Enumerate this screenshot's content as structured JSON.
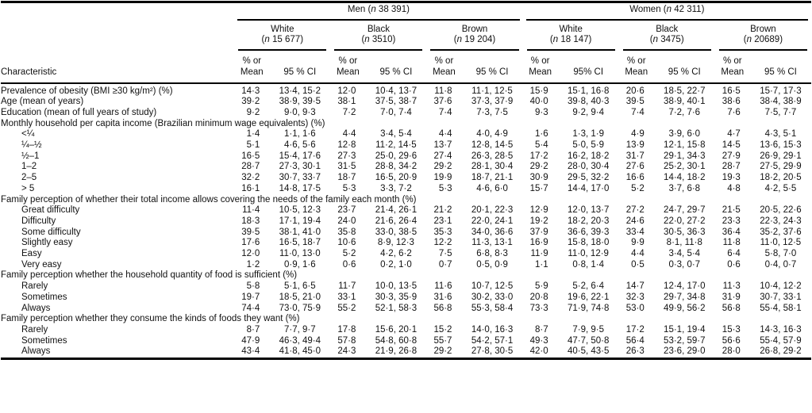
{
  "table": {
    "col_characteristic": "Characteristic",
    "groups": [
      {
        "sex": "Men",
        "nvar": "n",
        "count": "38 391",
        "races": [
          {
            "label": "White",
            "nvar": "n",
            "count": "15 677",
            "mean_header": "% or\nMean",
            "ci_header": "95 % CI"
          },
          {
            "label": "Black",
            "nvar": "n",
            "count": "3510",
            "mean_header": "% or\nMean",
            "ci_header": "95 % CI"
          },
          {
            "label": "Brown",
            "nvar": "n",
            "count": "19 204",
            "mean_header": "% or\nMean",
            "ci_header": "95 % CI"
          }
        ]
      },
      {
        "sex": "Women",
        "nvar": "n",
        "count": "42 311",
        "races": [
          {
            "label": "White",
            "nvar": "n",
            "count": "18 147",
            "mean_header": "% or\nMean",
            "ci_header": "95% CI"
          },
          {
            "label": "Black",
            "nvar": "n",
            "count": "3475",
            "mean_header": "% or\nMean",
            "ci_header": "95 % CI"
          },
          {
            "label": "Brown",
            "nvar": "n",
            "count": "20689",
            "mean_header": "% or\nMean",
            "ci_header": "95 % CI"
          }
        ]
      }
    ],
    "rows": [
      {
        "type": "data",
        "indent": 0,
        "label": "Prevalence of obesity (BMI ≥30 kg/m²) (%)",
        "values": [
          "14·3",
          "13·4, 15·2",
          "12·0",
          "10·4, 13·7",
          "11·8",
          "11·1, 12·5",
          "15·9",
          "15·1, 16·8",
          "20·6",
          "18·5, 22·7",
          "16·5",
          "15·7, 17·3"
        ]
      },
      {
        "type": "data",
        "indent": 0,
        "label": "Age (mean of years)",
        "values": [
          "39·2",
          "38·9, 39·5",
          "38·1",
          "37·5, 38·7",
          "37·6",
          "37·3, 37·9",
          "40·0",
          "39·8, 40·3",
          "39·5",
          "38·9, 40·1",
          "38·6",
          "38·4, 38·9"
        ]
      },
      {
        "type": "data",
        "indent": 0,
        "label": "Education (mean of full years of study)",
        "values": [
          "9·2",
          "9·0, 9·3",
          "7·2",
          "7·0, 7·4",
          "7·4",
          "7·3, 7·5",
          "9·3",
          "9·2, 9·4",
          "7·4",
          "7·2, 7·6",
          "7·6",
          "7·5, 7·7"
        ]
      },
      {
        "type": "section",
        "label": "Monthly household per capita income (Brazilian minimum wage equivalents) (%)"
      },
      {
        "type": "data",
        "indent": 1,
        "label": "<¼",
        "values": [
          "1·4",
          "1·1, 1·6",
          "4·4",
          "3·4, 5·4",
          "4·4",
          "4·0, 4·9",
          "1·6",
          "1·3, 1·9",
          "4·9",
          "3·9, 6·0",
          "4·7",
          "4·3, 5·1"
        ]
      },
      {
        "type": "data",
        "indent": 1,
        "label": "¼–½",
        "values": [
          "5·1",
          "4·6, 5·6",
          "12·8",
          "11·2, 14·5",
          "13·7",
          "12·8, 14·5",
          "5·4",
          "5·0, 5·9",
          "13·9",
          "12·1, 15·8",
          "14·5",
          "13·6, 15·3"
        ]
      },
      {
        "type": "data",
        "indent": 1,
        "label": "½–1",
        "values": [
          "16·5",
          "15·4, 17·6",
          "27·3",
          "25·0, 29·6",
          "27·4",
          "26·3, 28·5",
          "17·2",
          "16·2, 18·2",
          "31·7",
          "29·1, 34·3",
          "27·9",
          "26·9, 29·1"
        ]
      },
      {
        "type": "data",
        "indent": 1,
        "label": "1–2",
        "values": [
          "28·7",
          "27·3, 30·1",
          "31·5",
          "28·8, 34·2",
          "29·2",
          "28·1, 30·4",
          "29·2",
          "28·0, 30·4",
          "27·6",
          "25·2, 30·1",
          "28·7",
          "27·5, 29·9"
        ]
      },
      {
        "type": "data",
        "indent": 1,
        "label": "2–5",
        "values": [
          "32·2",
          "30·7, 33·7",
          "18·7",
          "16·5, 20·9",
          "19·9",
          "18·7, 21·1",
          "30·9",
          "29·5, 32·2",
          "16·6",
          "14·4, 18·2",
          "19·3",
          "18·2, 20·5"
        ]
      },
      {
        "type": "data",
        "indent": 1,
        "label": "> 5",
        "values": [
          "16·1",
          "14·8, 17·5",
          "5·3",
          "3·3, 7·2",
          "5·3",
          "4·6, 6·0",
          "15·7",
          "14·4, 17·0",
          "5·2",
          "3·7, 6·8",
          "4·8",
          "4·2, 5·5"
        ]
      },
      {
        "type": "section",
        "label": "Family perception of whether their total income allows covering the needs of the family each month (%)"
      },
      {
        "type": "data",
        "indent": 1,
        "label": "Great difficulty",
        "values": [
          "11·4",
          "10·5, 12·3",
          "23·7",
          "21·4, 26·1",
          "21·2",
          "20·1, 22·3",
          "12·9",
          "12·0, 13·7",
          "27·2",
          "24·7, 29·7",
          "21·5",
          "20·5, 22·6"
        ]
      },
      {
        "type": "data",
        "indent": 1,
        "label": "Difficulty",
        "values": [
          "18·3",
          "17·1, 19·4",
          "24·0",
          "21·6, 26·4",
          "23·1",
          "22·0, 24·1",
          "19·2",
          "18·2, 20·3",
          "24·6",
          "22·0, 27·2",
          "23·3",
          "22·3, 24·3"
        ]
      },
      {
        "type": "data",
        "indent": 1,
        "label": "Some difficulty",
        "values": [
          "39·5",
          "38·1, 41·0",
          "35·8",
          "33·0, 38·5",
          "35·3",
          "34·0, 36·6",
          "37·9",
          "36·6, 39·3",
          "33·4",
          "30·5, 36·3",
          "36·4",
          "35·2, 37·6"
        ]
      },
      {
        "type": "data",
        "indent": 1,
        "label": "Slightly easy",
        "values": [
          "17·6",
          "16·5, 18·7",
          "10·6",
          "8·9, 12·3",
          "12·2",
          "11·3, 13·1",
          "16·9",
          "15·8, 18·0",
          "9·9",
          "8·1, 11·8",
          "11·8",
          "11·0, 12·5"
        ]
      },
      {
        "type": "data",
        "indent": 1,
        "label": "Easy",
        "values": [
          "12·0",
          "11·0, 13·0",
          "5·2",
          "4·2, 6·2",
          "7·5",
          "6·8, 8·3",
          "11·9",
          "11·0, 12·9",
          "4·4",
          "3·4, 5·4",
          "6·4",
          "5·8, 7·0"
        ]
      },
      {
        "type": "data",
        "indent": 1,
        "label": "Very easy",
        "values": [
          "1·2",
          "0·9, 1·6",
          "0·6",
          "0·2, 1·0",
          "0·7",
          "0·5, 0·9",
          "1·1",
          "0·8, 1·4",
          "0·5",
          "0·3, 0·7",
          "0·6",
          "0·4, 0·7"
        ]
      },
      {
        "type": "section",
        "label": "Family perception whether the household quantity of food is sufficient (%)"
      },
      {
        "type": "data",
        "indent": 1,
        "label": "Rarely",
        "values": [
          "5·8",
          "5·1, 6·5",
          "11·7",
          "10·0, 13·5",
          "11·6",
          "10·7, 12·5",
          "5·9",
          "5·2, 6·4",
          "14·7",
          "12·4, 17·0",
          "11·3",
          "10·4, 12·2"
        ]
      },
      {
        "type": "data",
        "indent": 1,
        "label": "Sometimes",
        "values": [
          "19·7",
          "18·5, 21·0",
          "33·1",
          "30·3, 35·9",
          "31·6",
          "30·2, 33·0",
          "20·8",
          "19·6, 22·1",
          "32·3",
          "29·7, 34·8",
          "31·9",
          "30·7, 33·1"
        ]
      },
      {
        "type": "data",
        "indent": 1,
        "label": "Always",
        "values": [
          "74·4",
          "73·0, 75·9",
          "55·2",
          "52·1, 58·3",
          "56·8",
          "55·3, 58·4",
          "73·3",
          "71·9, 74·8",
          "53·0",
          "49·9, 56·2",
          "56·8",
          "55·4, 58·1"
        ]
      },
      {
        "type": "section",
        "label": "Family perception whether they consume the kinds of foods they want (%)"
      },
      {
        "type": "data",
        "indent": 1,
        "label": "Rarely",
        "values": [
          "8·7",
          "7·7, 9·7",
          "17·8",
          "15·6, 20·1",
          "15·2",
          "14·0, 16·3",
          "8·7",
          "7·9, 9·5",
          "17·2",
          "15·1, 19·4",
          "15·3",
          "14·3, 16·3"
        ]
      },
      {
        "type": "data",
        "indent": 1,
        "label": "Sometimes",
        "values": [
          "47·9",
          "46·3, 49·4",
          "57·8",
          "54·8, 60·8",
          "55·7",
          "54·2, 57·1",
          "49·3",
          "47·7, 50·8",
          "56·4",
          "53·2, 59·7",
          "56·6",
          "55·4, 57·9"
        ]
      },
      {
        "type": "data",
        "indent": 1,
        "label": "Always",
        "values": [
          "43·4",
          "41·8, 45·0",
          "24·3",
          "21·9, 26·8",
          "29·2",
          "27·8, 30·5",
          "42·0",
          "40·5, 43·5",
          "26·3",
          "23·6, 29·0",
          "28·0",
          "26·8, 29·2"
        ]
      }
    ]
  }
}
